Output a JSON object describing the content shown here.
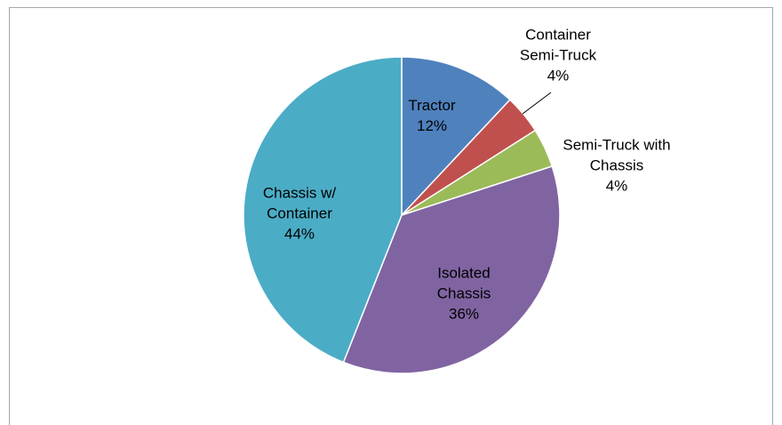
{
  "chart_data": {
    "type": "pie",
    "categories": [
      "Tractor",
      "Container Semi-Truck",
      "Semi-Truck with Chassis",
      "Isolated Chassis",
      "Chassis w/ Container"
    ],
    "values": [
      12,
      4,
      4,
      36,
      44
    ],
    "value_labels": [
      "12%",
      "4%",
      "4%",
      "36%",
      "44%"
    ],
    "colors": [
      "#4f81bd",
      "#c0504d",
      "#9bbb59",
      "#8064a2",
      "#4bacc6"
    ]
  }
}
